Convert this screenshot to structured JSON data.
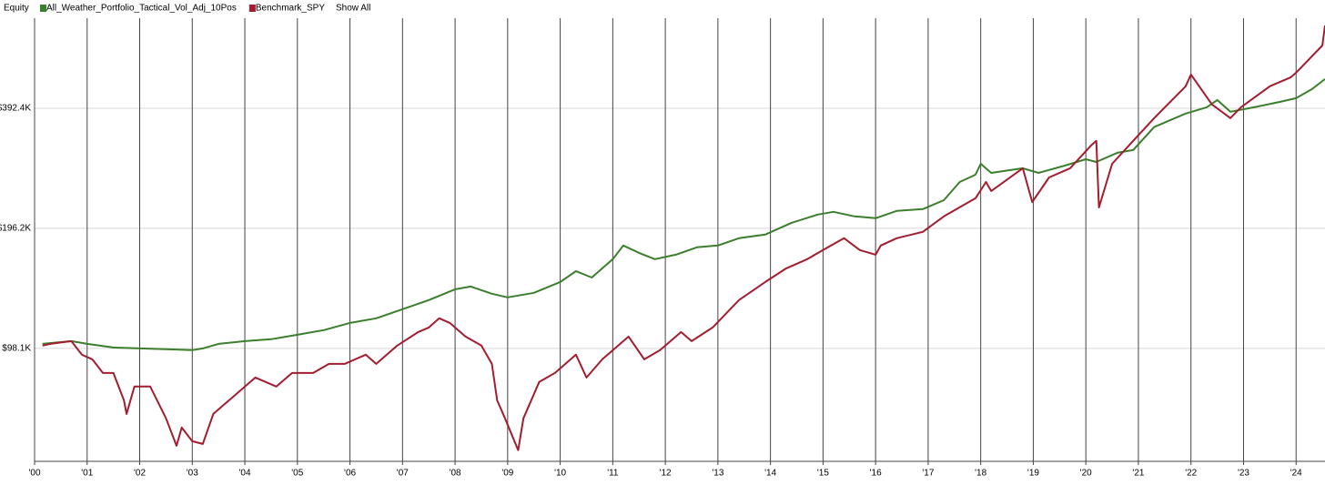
{
  "chart_data": {
    "type": "line",
    "legend_title": "Equity",
    "show_all_label": "Show All",
    "log_scale": true,
    "grid": true,
    "legend_position": "top-left",
    "xlim": [
      2000,
      2024.55
    ],
    "xticks": [
      {
        "value": 2000,
        "label": "'00"
      },
      {
        "value": 2001,
        "label": "'01"
      },
      {
        "value": 2002,
        "label": "'02"
      },
      {
        "value": 2003,
        "label": "'03"
      },
      {
        "value": 2004,
        "label": "'04"
      },
      {
        "value": 2005,
        "label": "'05"
      },
      {
        "value": 2006,
        "label": "'06"
      },
      {
        "value": 2007,
        "label": "'07"
      },
      {
        "value": 2008,
        "label": "'08"
      },
      {
        "value": 2009,
        "label": "'09"
      },
      {
        "value": 2010,
        "label": "'10"
      },
      {
        "value": 2011,
        "label": "'11"
      },
      {
        "value": 2012,
        "label": "'12"
      },
      {
        "value": 2013,
        "label": "'13"
      },
      {
        "value": 2014,
        "label": "'14"
      },
      {
        "value": 2015,
        "label": "'15"
      },
      {
        "value": 2016,
        "label": "'16"
      },
      {
        "value": 2017,
        "label": "'17"
      },
      {
        "value": 2018,
        "label": "'18"
      },
      {
        "value": 2019,
        "label": "'19"
      },
      {
        "value": 2020,
        "label": "'20"
      },
      {
        "value": 2021,
        "label": "'21"
      },
      {
        "value": 2022,
        "label": "'22"
      },
      {
        "value": 2023,
        "label": "'23"
      },
      {
        "value": 2024,
        "label": "'24"
      }
    ],
    "ylim": [
      51100,
      660000
    ],
    "yticks": [
      {
        "value": 98100,
        "label": "$98.1K"
      },
      {
        "value": 196200,
        "label": "$196.2K"
      },
      {
        "value": 392400,
        "label": "$392.4K"
      }
    ],
    "series": [
      {
        "name": "All_Weather_Portfolio_Tactical_Vol_Adj_10Pos",
        "color": "#3b7f2d",
        "x": [
          2000.15,
          2000.7,
          2001.0,
          2001.5,
          2002.0,
          2002.5,
          2003.0,
          2003.2,
          2003.5,
          2004.0,
          2004.5,
          2005.0,
          2005.5,
          2006.0,
          2006.5,
          2007.0,
          2007.5,
          2008.0,
          2008.3,
          2008.7,
          2009.0,
          2009.5,
          2010.0,
          2010.3,
          2010.6,
          2011.0,
          2011.2,
          2011.5,
          2011.8,
          2012.2,
          2012.6,
          2013.0,
          2013.4,
          2013.9,
          2014.4,
          2014.9,
          2015.2,
          2015.6,
          2016.0,
          2016.4,
          2016.9,
          2017.3,
          2017.6,
          2017.9,
          2018.0,
          2018.2,
          2018.8,
          2019.1,
          2019.6,
          2020.0,
          2020.2,
          2020.6,
          2020.9,
          2021.3,
          2021.9,
          2022.3,
          2022.5,
          2022.75,
          2023.2,
          2023.7,
          2024.0,
          2024.3,
          2024.55
        ],
        "values": [
          100700,
          102300,
          100700,
          98600,
          98100,
          97600,
          97100,
          98100,
          100700,
          102300,
          103400,
          106100,
          109000,
          113600,
          116700,
          123000,
          129600,
          138000,
          140200,
          134500,
          131700,
          135200,
          143900,
          153200,
          147700,
          164200,
          177700,
          170300,
          164200,
          168500,
          175800,
          177700,
          185300,
          189200,
          202500,
          212400,
          215800,
          210200,
          208000,
          216900,
          219200,
          230800,
          256400,
          267400,
          284800,
          270200,
          277500,
          270200,
          281800,
          292300,
          287800,
          303400,
          308200,
          352100,
          380600,
          394700,
          411600,
          384600,
          394700,
          407300,
          415900,
          438000,
          464500
        ]
      },
      {
        "name": "Benchmark_SPY",
        "color": "#a21d2e",
        "x": [
          2000.15,
          2000.3,
          2000.7,
          2000.9,
          2001.1,
          2001.3,
          2001.5,
          2001.7,
          2001.75,
          2001.9,
          2002.2,
          2002.5,
          2002.7,
          2002.8,
          2003.0,
          2003.2,
          2003.4,
          2003.6,
          2003.9,
          2004.2,
          2004.6,
          2004.9,
          2005.3,
          2005.6,
          2005.9,
          2006.3,
          2006.5,
          2006.9,
          2007.3,
          2007.5,
          2007.7,
          2007.9,
          2008.2,
          2008.5,
          2008.7,
          2008.8,
          2008.95,
          2009.2,
          2009.3,
          2009.6,
          2009.9,
          2010.3,
          2010.5,
          2010.8,
          2011.3,
          2011.6,
          2011.9,
          2012.3,
          2012.5,
          2012.9,
          2013.4,
          2013.9,
          2014.3,
          2014.7,
          2015.0,
          2015.4,
          2015.7,
          2016.0,
          2016.1,
          2016.4,
          2016.9,
          2017.3,
          2017.9,
          2018.1,
          2018.2,
          2018.8,
          2018.98,
          2019.3,
          2019.7,
          2020.1,
          2020.2,
          2020.25,
          2020.5,
          2020.9,
          2021.3,
          2021.9,
          2022.0,
          2022.4,
          2022.75,
          2022.95,
          2023.5,
          2023.9,
          2024.0,
          2024.5,
          2024.55
        ],
        "values": [
          99700,
          100700,
          102300,
          94600,
          92100,
          85100,
          85100,
          72700,
          67200,
          78700,
          78700,
          65500,
          55900,
          62100,
          57400,
          56500,
          67200,
          70800,
          76600,
          82900,
          78700,
          85100,
          85100,
          89700,
          89700,
          94600,
          89700,
          99700,
          107800,
          110700,
          116700,
          113600,
          105000,
          99700,
          89700,
          72700,
          65500,
          54500,
          65500,
          80800,
          85100,
          94600,
          82900,
          92100,
          105000,
          92100,
          97100,
          107800,
          102300,
          110700,
          129600,
          143900,
          155700,
          164200,
          173100,
          185300,
          173100,
          168500,
          177700,
          185300,
          192200,
          210200,
          233300,
          256400,
          243400,
          277500,
          228400,
          263200,
          277500,
          316700,
          325000,
          221300,
          284800,
          325000,
          370800,
          445500,
          476900,
          401000,
          370800,
          394700,
          445500,
          469400,
          481900,
          563800,
          633000
        ]
      }
    ]
  }
}
